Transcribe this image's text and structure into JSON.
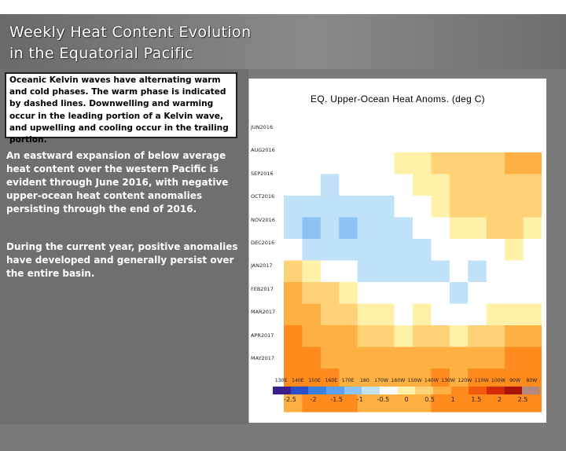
{
  "header": {
    "title_line1": "Weekly Heat Content Evolution",
    "title_line2": "in the Equatorial Pacific"
  },
  "note_box": {
    "text": "Oceanic Kelvin waves have alternating warm and cold phases. The warm phase is indicated by dashed lines. Downwelling and warming occur in the leading portion of a Kelvin wave, and upwelling and cooling occur in the trailing portion."
  },
  "paragraphs": [
    "An eastward expansion of below average heat content over the western Pacific is evident through June 2016, with negative upper-ocean heat content anomalies persisting through the end of 2016.",
    "During the current year, positive anomalies have developed and generally persist over the entire basin."
  ],
  "chart_data": {
    "type": "heatmap",
    "title": "EQ. Upper-Ocean Heat Anoms. (deg C)",
    "y_tick_labels": [
      "JUN2016",
      "AUG2016",
      "SEP2016",
      "OCT2016",
      "NOV2016",
      "DEC2016",
      "JAN2017",
      "FEB2017",
      "MAR2017",
      "APR2017",
      "MAY2017"
    ],
    "x_tick_labels": [
      "130E",
      "140E",
      "150E",
      "160E",
      "170E",
      "180",
      "170W",
      "160W",
      "150W",
      "140W",
      "130W",
      "120W",
      "110W",
      "100W",
      "90W",
      "80W"
    ],
    "colorbar_ticks": [
      "-2.5",
      "-2",
      "-1.5",
      "-1",
      "-0.5",
      "0",
      "0.5",
      "1",
      "1.5",
      "2",
      "2.5"
    ],
    "colorbar_colors": [
      "#3b1f8f",
      "#2a4fc9",
      "#3c7fe0",
      "#5aa0ee",
      "#8cc3f4",
      "#bfe2f8",
      "#ffffff",
      "#fff2a8",
      "#ffd277",
      "#ffb042",
      "#ff8a1e",
      "#f25a0c",
      "#d42a08",
      "#a8160a",
      "#b08a80"
    ],
    "row_values": [
      [
        -0.2,
        -0.3,
        -0.5,
        -0.4,
        -0.3,
        -0.2,
        -0.1,
        0.1,
        0.2,
        0.3,
        0.4,
        0.4,
        0.6,
        0.7
      ],
      [
        -0.3,
        -0.5,
        -0.6,
        -0.5,
        -0.4,
        -0.3,
        -0.2,
        -0.1,
        0.1,
        0.2,
        0.3,
        0.4,
        0.5,
        0.5
      ],
      [
        -0.6,
        -0.8,
        -0.9,
        -0.7,
        -0.6,
        -0.7,
        -0.5,
        -0.3,
        -0.1,
        0.2,
        0.3,
        0.3,
        0.4,
        0.3
      ],
      [
        -0.8,
        -1.0,
        -0.9,
        -1.1,
        -0.8,
        -0.6,
        -0.6,
        -0.4,
        -0.2,
        0.0,
        0.1,
        0.2,
        0.2,
        0.1
      ],
      [
        -0.4,
        -0.6,
        -0.8,
        -0.7,
        -0.9,
        -0.8,
        -0.6,
        -0.7,
        -0.5,
        -0.3,
        -0.3,
        -0.2,
        -0.1,
        -0.2
      ],
      [
        0.2,
        0.0,
        -0.2,
        -0.4,
        -0.6,
        -0.7,
        -0.6,
        -0.6,
        -0.7,
        -0.5,
        -0.6,
        -0.5,
        -0.4,
        -0.3
      ],
      [
        0.6,
        0.4,
        0.2,
        0.0,
        -0.2,
        -0.3,
        -0.4,
        -0.4,
        -0.5,
        -0.6,
        -0.5,
        -0.4,
        -0.3,
        -0.2
      ],
      [
        0.9,
        0.7,
        0.5,
        0.3,
        0.1,
        -0.1,
        -0.2,
        -0.1,
        -0.2,
        -0.3,
        -0.2,
        -0.1,
        0.0,
        0.1
      ],
      [
        1.1,
        0.9,
        0.7,
        0.6,
        0.4,
        0.2,
        0.1,
        0.3,
        0.2,
        0.1,
        0.3,
        0.4,
        0.6,
        0.7
      ],
      [
        1.2,
        1.0,
        0.9,
        0.8,
        0.7,
        0.6,
        0.6,
        0.8,
        0.9,
        0.7,
        0.8,
        0.9,
        1.1,
        1.2
      ],
      [
        1.0,
        1.2,
        1.0,
        0.9,
        0.8,
        0.8,
        0.7,
        0.9,
        1.0,
        0.9,
        1.0,
        1.1,
        1.2,
        1.3
      ],
      [
        0.9,
        1.1,
        1.2,
        1.0,
        0.8,
        0.7,
        0.8,
        0.9,
        1.0,
        1.1,
        1.0,
        1.2,
        1.3,
        1.2
      ]
    ]
  }
}
